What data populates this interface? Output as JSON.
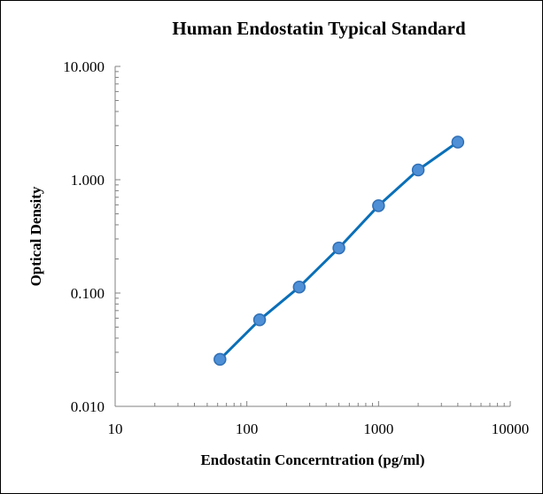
{
  "chart_data": {
    "type": "line",
    "title": "Human Endostatin Typical Standard",
    "xlabel": "Endostatin Concerntration (pg/ml)",
    "ylabel": "Optical Density",
    "x_scale": "log",
    "y_scale": "log",
    "xlim": [
      10,
      10000
    ],
    "ylim": [
      0.01,
      10
    ],
    "x_ticks": [
      "10",
      "100",
      "1000",
      "10000"
    ],
    "y_ticks": [
      "0.010",
      "0.100",
      "1.000",
      "10.000"
    ],
    "grid": false,
    "legend": "none",
    "series": [
      {
        "x": [
          62.5,
          125,
          250,
          500,
          1000,
          2000,
          4000
        ],
        "y": [
          0.026,
          0.058,
          0.113,
          0.25,
          0.59,
          1.22,
          2.15
        ]
      }
    ],
    "colors": {
      "line": "#0a6fb8",
      "marker": "#4e8fd6",
      "marker_edge": "#2f6fb5",
      "axis": "#808080"
    }
  }
}
